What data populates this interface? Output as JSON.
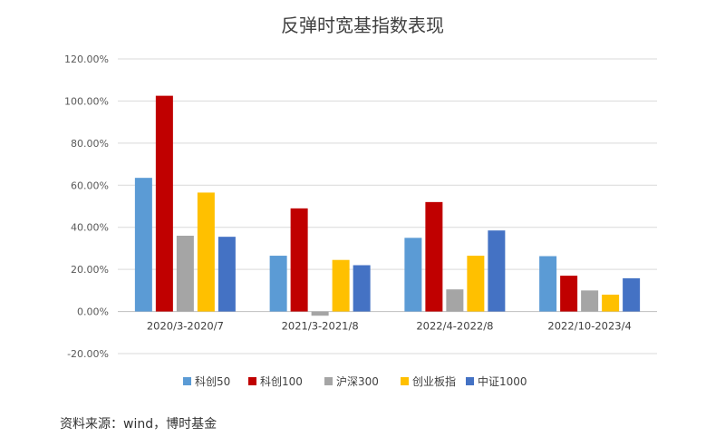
{
  "chart_data": {
    "type": "bar",
    "title": "反弹时宽基指数表现",
    "categories": [
      "2020/3-2020/7",
      "2021/3-2021/8",
      "2022/4-2022/8",
      "2022/10-2023/4"
    ],
    "series": [
      {
        "name": "科创50",
        "color": "#5b9bd5",
        "values": [
          63.5,
          26.5,
          35.0,
          26.3
        ]
      },
      {
        "name": "科创100",
        "color": "#c00000",
        "values": [
          102.5,
          49.0,
          52.0,
          17.0
        ]
      },
      {
        "name": "沪深300",
        "color": "#a5a5a5",
        "values": [
          36.0,
          -2.0,
          10.5,
          10.0
        ]
      },
      {
        "name": "创业板指",
        "color": "#ffc000",
        "values": [
          56.5,
          24.5,
          26.5,
          8.0
        ]
      },
      {
        "name": "中证1000",
        "color": "#4472c4",
        "values": [
          35.5,
          22.0,
          38.5,
          15.8
        ]
      }
    ],
    "yticks": [
      "-20.00%",
      "0.00%",
      "20.00%",
      "40.00%",
      "60.00%",
      "80.00%",
      "100.00%",
      "120.00%"
    ],
    "ylim": [
      -20,
      120
    ],
    "grid": true,
    "legend_position": "bottom"
  },
  "source_note": "资料来源：wind，博时基金"
}
